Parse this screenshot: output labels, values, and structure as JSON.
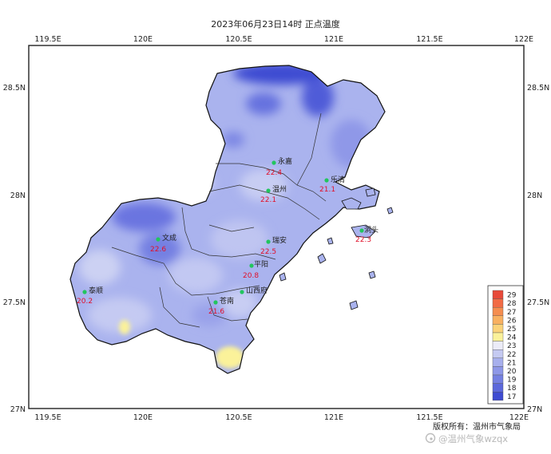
{
  "title": "2023年06月23日14时 正点温度",
  "axes": {
    "lon_ticks": [
      "119.5E",
      "120E",
      "120.5E",
      "121E",
      "121.5E",
      "122E"
    ],
    "lat_ticks": [
      "28.5N",
      "28N",
      "27.5N",
      "27N"
    ]
  },
  "stations": [
    {
      "name": "永嘉",
      "temp": "22.4"
    },
    {
      "name": "温州",
      "temp": "22.1"
    },
    {
      "name": "乐清",
      "temp": "21.1"
    },
    {
      "name": "洞头",
      "temp": "22.3"
    },
    {
      "name": "文成",
      "temp": "22.6"
    },
    {
      "name": "瑞安",
      "temp": "22.5"
    },
    {
      "name": "平阳",
      "temp": "20.8"
    },
    {
      "name": "泰顺",
      "temp": "20.2"
    },
    {
      "name": "山西府",
      "temp": ""
    },
    {
      "name": "苍南",
      "temp": "21.6"
    }
  ],
  "legend": {
    "labels": [
      "29",
      "28",
      "27",
      "26",
      "25",
      "24",
      "23",
      "22",
      "21",
      "20",
      "19",
      "18",
      "17"
    ],
    "colors": [
      "#e84a3a",
      "#f26b45",
      "#f58d4f",
      "#f8b060",
      "#fbd379",
      "#fbf29a",
      "#ececf8",
      "#c5caf2",
      "#a7afed",
      "#8e97e8",
      "#7580e2",
      "#5c68dc",
      "#3e4bd2"
    ]
  },
  "footer": {
    "copyright": "版权所有：温州市气象局",
    "watermark": "@温州气象wzqx"
  },
  "colors": {
    "land_base": "#aab3ee",
    "warm": "#fbf29a",
    "cool": "#4f5bd8"
  },
  "icons": {
    "station": "station-dot-icon",
    "brand": "weibo-icon"
  }
}
